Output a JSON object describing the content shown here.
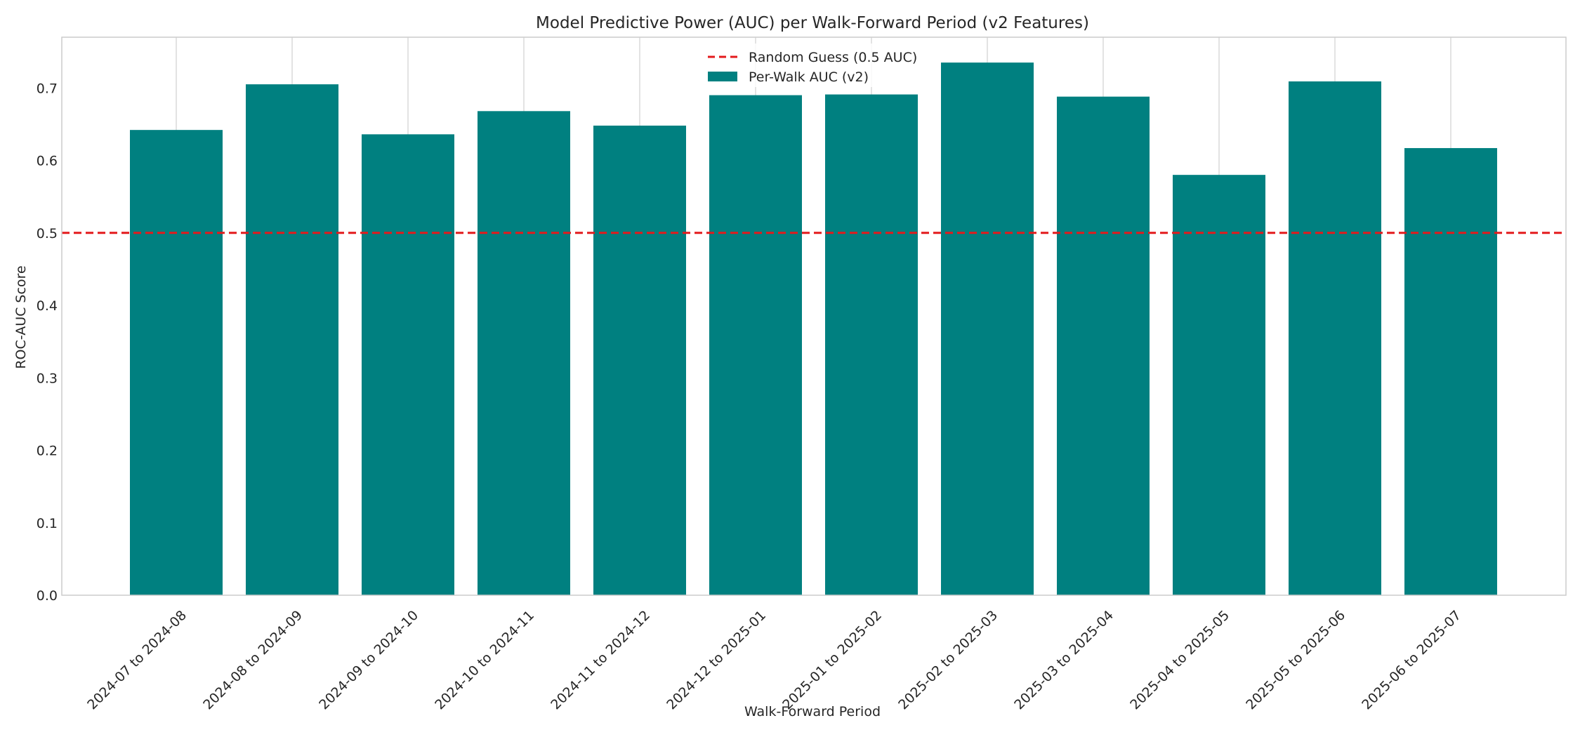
{
  "chart_data": {
    "type": "bar",
    "title": "Model Predictive Power (AUC) per Walk-Forward Period (v2 Features)",
    "xlabel": "Walk-Forward Period",
    "ylabel": "ROC-AUC Score",
    "categories": [
      "2024-07 to 2024-08",
      "2024-08 to 2024-09",
      "2024-09 to 2024-10",
      "2024-10 to 2024-11",
      "2024-11 to 2024-12",
      "2024-12 to 2025-01",
      "2025-01 to 2025-02",
      "2025-02 to 2025-03",
      "2025-03 to 2025-04",
      "2025-04 to 2025-05",
      "2025-05 to 2025-06",
      "2025-06 to 2025-07"
    ],
    "series": [
      {
        "name": "Per-Walk AUC (v2)",
        "color": "#008080",
        "values": [
          0.642,
          0.705,
          0.636,
          0.668,
          0.648,
          0.69,
          0.691,
          0.735,
          0.688,
          0.58,
          0.709,
          0.617
        ]
      }
    ],
    "reference_line": {
      "name": "Random Guess (0.5 AUC)",
      "y": 0.5,
      "color": "#e31a1c",
      "style": "dashed"
    },
    "ylim": [
      0,
      0.77
    ],
    "yticks": [
      "0.0",
      "0.1",
      "0.2",
      "0.3",
      "0.4",
      "0.5",
      "0.6",
      "0.7"
    ],
    "grid": "x-only",
    "legend_position": "top-center"
  }
}
